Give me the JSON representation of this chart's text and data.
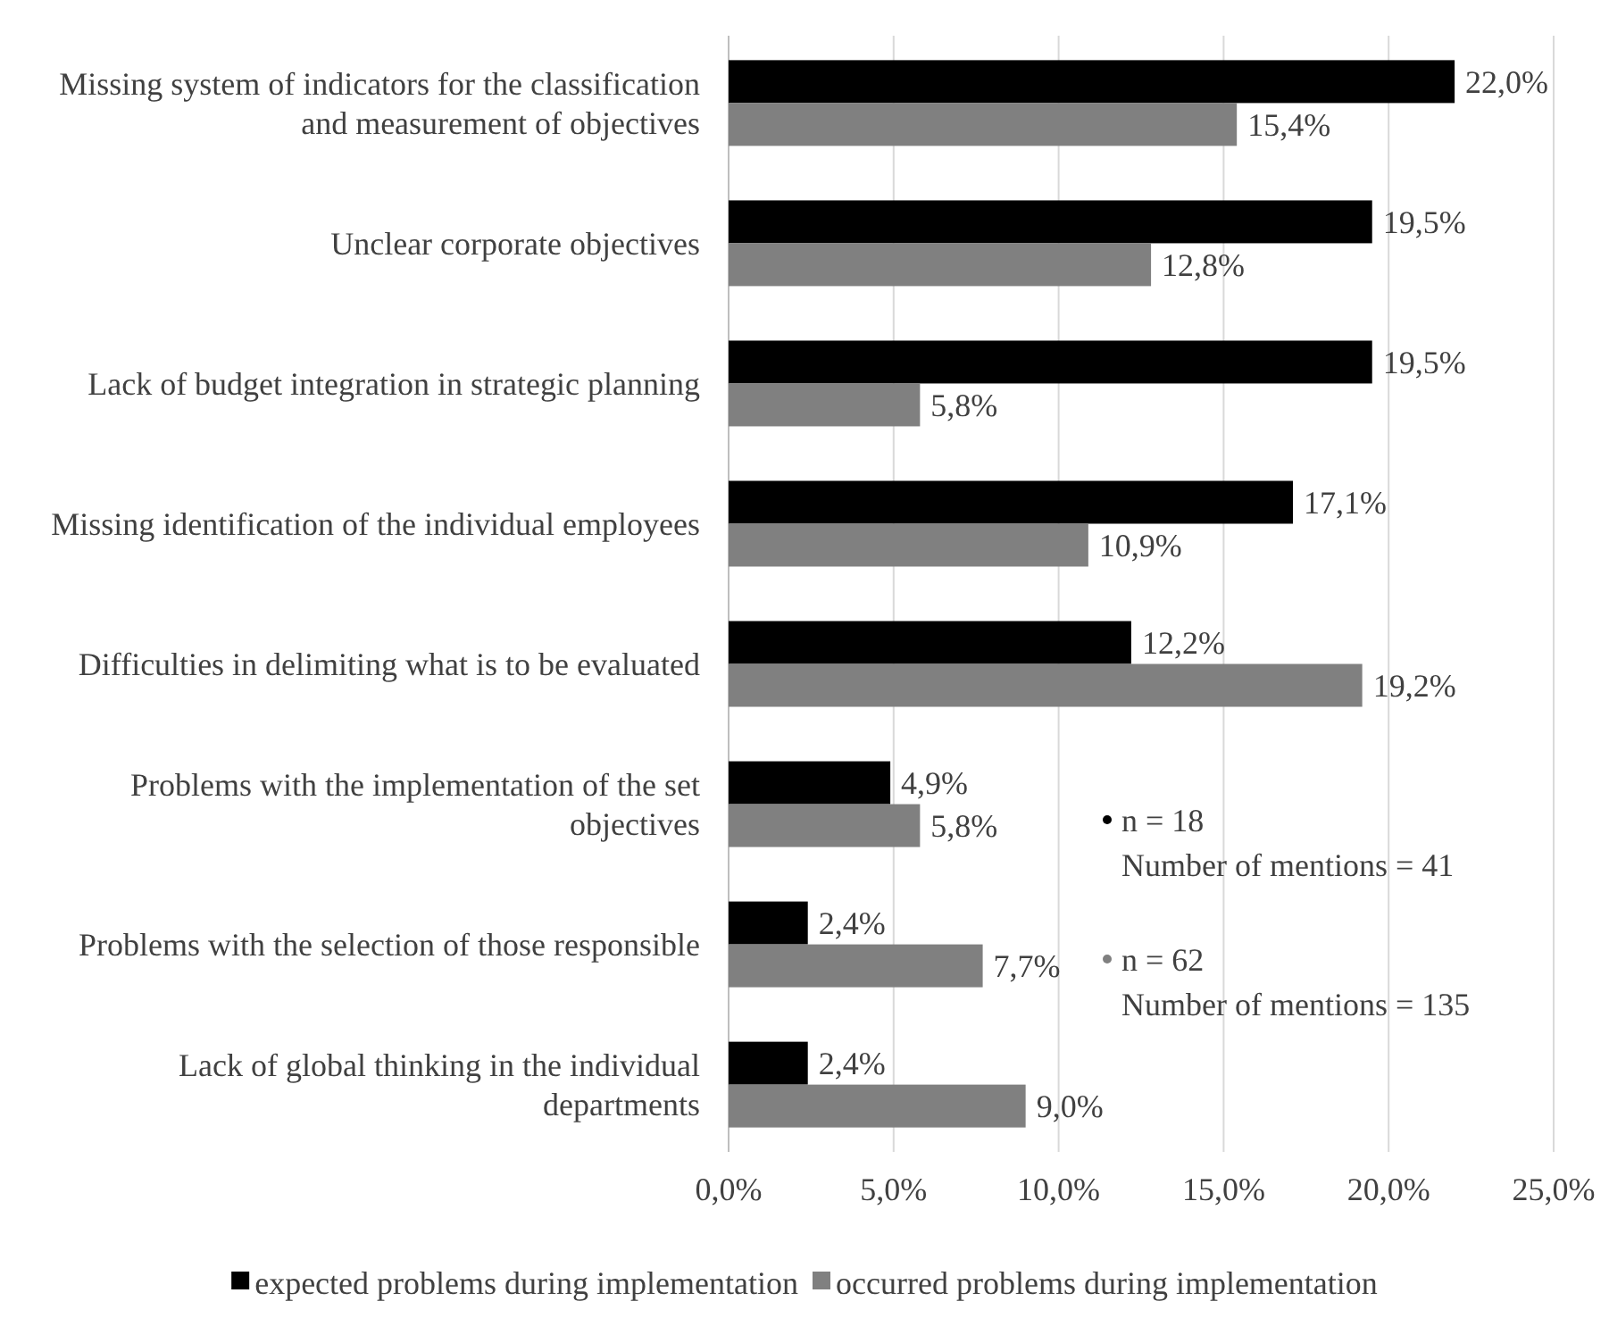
{
  "chart_data": {
    "type": "bar",
    "orientation": "horizontal",
    "categories": [
      "Missing system of indicators for the classification and measurement of objectives",
      "Unclear corporate objectives",
      "Lack of budget integration in strategic planning",
      "Missing identification of the individual employees",
      "Difficulties in delimiting what is to be evaluated",
      "Problems with the implementation of the set objectives",
      "Problems with the selection of those responsible",
      "Lack of global thinking in the individual departments"
    ],
    "series": [
      {
        "name": "expected problems during implementation",
        "color": "#000000",
        "values": [
          22.0,
          19.5,
          19.5,
          17.1,
          12.2,
          4.9,
          2.4,
          2.4
        ],
        "value_labels": [
          "22,0%",
          "19,5%",
          "19,5%",
          "17,1%",
          "12,2%",
          "4,9%",
          "2,4%",
          "2,4%"
        ]
      },
      {
        "name": "occurred problems during implementation",
        "color": "#808080",
        "values": [
          15.4,
          12.8,
          5.8,
          10.9,
          19.2,
          5.8,
          7.7,
          9.0
        ],
        "value_labels": [
          "15,4%",
          "12,8%",
          "5,8%",
          "10,9%",
          "19,2%",
          "5,8%",
          "7,7%",
          "9,0%"
        ]
      }
    ],
    "xlim": [
      0,
      25
    ],
    "xticks": [
      {
        "value": 0,
        "label": "0,0%"
      },
      {
        "value": 5,
        "label": "5,0%"
      },
      {
        "value": 10,
        "label": "10,0%"
      },
      {
        "value": 15,
        "label": "15,0%"
      },
      {
        "value": 20,
        "label": "20,0%"
      },
      {
        "value": 25,
        "label": "25,0%"
      }
    ],
    "grid": "x",
    "legend": "bottom",
    "annotations": [
      "n = 18",
      "Number of mentions = 41",
      "n = 62",
      "Number of mentions = 135"
    ]
  }
}
